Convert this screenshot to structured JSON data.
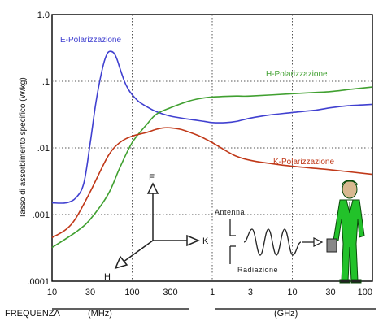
{
  "chart_data": {
    "type": "line",
    "title": "",
    "xlabel": "FREQUENZA",
    "ylabel": "Tasso di assorbimento specifico (W/kg)",
    "x_scale": "log",
    "y_scale": "log",
    "xlim": [
      10,
      100000
    ],
    "ylim": [
      0.0001,
      1.0
    ],
    "x_unit_labels": [
      "(MHz)",
      "(GHz)"
    ],
    "x_tick_values": [
      10,
      30,
      100,
      300,
      1000,
      3000,
      10000,
      30000,
      100000
    ],
    "x_tick_labels": [
      "10",
      "30",
      "100",
      "300",
      "1",
      "3",
      "10",
      "30",
      "100"
    ],
    "y_tick_values": [
      0.0001,
      0.001,
      0.01,
      0.1,
      1.0
    ],
    "y_tick_labels": [
      ".0001",
      ".001",
      ".01",
      ".1",
      "1.0"
    ],
    "grid": "dotted",
    "series": [
      {
        "name": "E-Polarizzazione",
        "color": "#4040d0",
        "x": [
          10,
          15,
          20,
          25,
          30,
          35,
          40,
          45,
          50,
          55,
          60,
          65,
          70,
          80,
          90,
          100,
          120,
          150,
          200,
          300,
          500,
          800,
          1000,
          1500,
          2000,
          3000,
          5000,
          10000,
          20000,
          30000,
          50000,
          100000
        ],
        "y": [
          0.0015,
          0.0015,
          0.0018,
          0.003,
          0.012,
          0.045,
          0.11,
          0.2,
          0.27,
          0.28,
          0.26,
          0.21,
          0.16,
          0.1,
          0.075,
          0.063,
          0.05,
          0.042,
          0.035,
          0.03,
          0.027,
          0.025,
          0.024,
          0.024,
          0.025,
          0.028,
          0.031,
          0.034,
          0.037,
          0.04,
          0.043,
          0.045
        ]
      },
      {
        "name": "H-Polarizzazione",
        "color": "#40a030",
        "x": [
          10,
          20,
          30,
          50,
          70,
          100,
          150,
          200,
          300,
          500,
          700,
          1000,
          2000,
          3000,
          10000,
          20000,
          30000,
          50000,
          100000
        ],
        "y": [
          0.00032,
          0.00055,
          0.00085,
          0.002,
          0.005,
          0.012,
          0.022,
          0.032,
          0.04,
          0.05,
          0.055,
          0.058,
          0.06,
          0.06,
          0.065,
          0.068,
          0.07,
          0.075,
          0.082
        ]
      },
      {
        "name": "K-Polarizzazione",
        "color": "#c03818",
        "x": [
          10,
          15,
          20,
          30,
          50,
          70,
          100,
          150,
          200,
          250,
          300,
          400,
          500,
          700,
          1000,
          1500,
          2000,
          3000,
          5000,
          10000,
          30000,
          100000
        ],
        "y": [
          0.00045,
          0.0006,
          0.0009,
          0.0022,
          0.0075,
          0.012,
          0.015,
          0.017,
          0.019,
          0.02,
          0.02,
          0.019,
          0.0175,
          0.015,
          0.012,
          0.009,
          0.0075,
          0.0065,
          0.0059,
          0.0053,
          0.0047,
          0.004
        ]
      }
    ]
  },
  "diagram": {
    "axis_e": "E",
    "axis_h": "H",
    "axis_k": "K",
    "antenna": "Antenna",
    "radiazione": "Radiazione",
    "colors": {
      "person_suit": "#22c22a",
      "person_outline": "#0a4a0a",
      "skin": "#d8b890"
    }
  }
}
